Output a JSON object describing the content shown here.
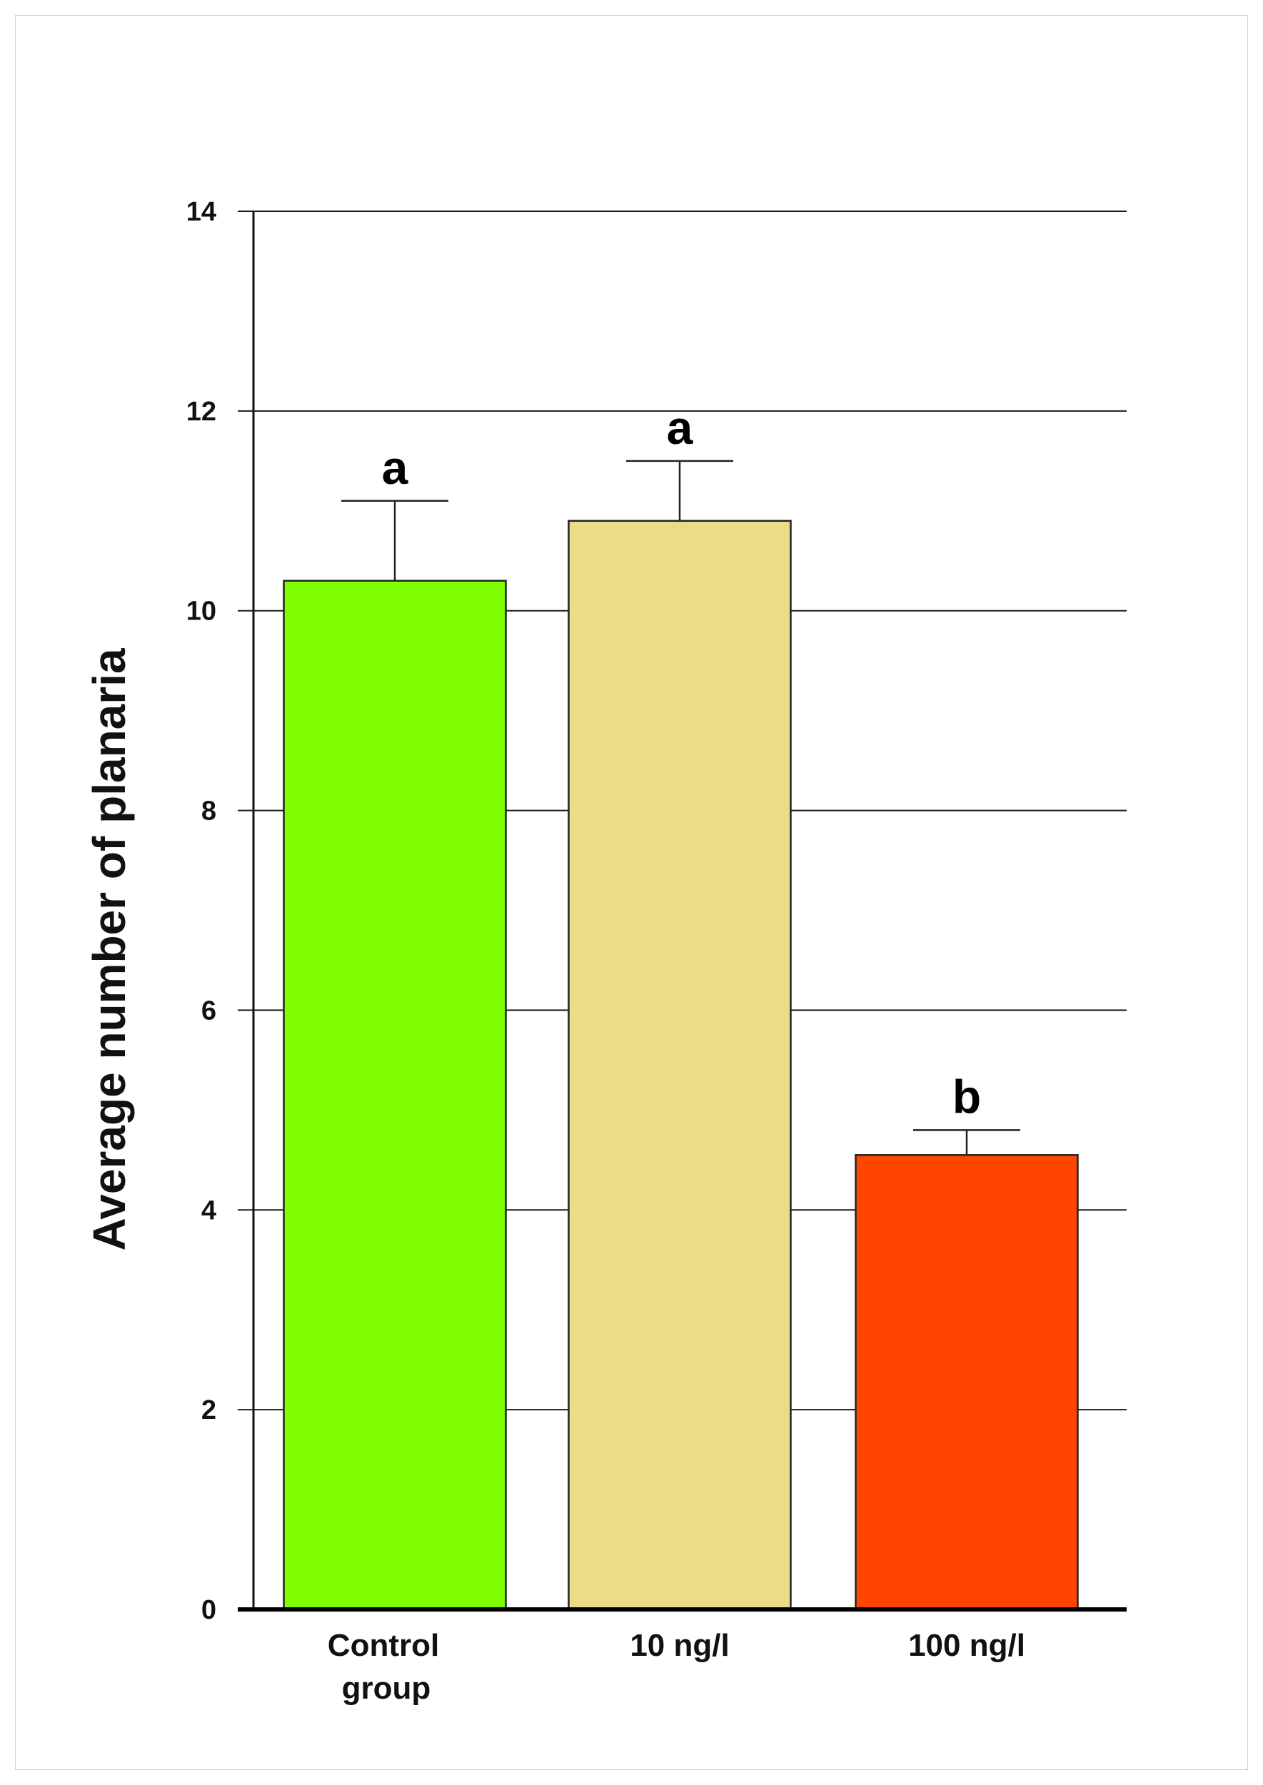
{
  "chart_data": {
    "type": "bar",
    "title": "",
    "xlabel": "",
    "ylabel": "Average number of planaria",
    "ylim": [
      0,
      14
    ],
    "yticks": [
      "0",
      "2",
      "4",
      "6",
      "8",
      "10",
      "12",
      "14"
    ],
    "grid": true,
    "categories": [
      [
        "Control",
        "group"
      ],
      [
        "10 ng/l"
      ],
      [
        "100 ng/l"
      ]
    ],
    "values": [
      10.3,
      10.9,
      4.55
    ],
    "error": [
      0.8,
      0.6,
      0.25
    ],
    "significance": [
      "a",
      "a",
      "b"
    ],
    "bar_colors": [
      "#7FFF00",
      "#ECDC8A",
      "#FF4500"
    ]
  }
}
